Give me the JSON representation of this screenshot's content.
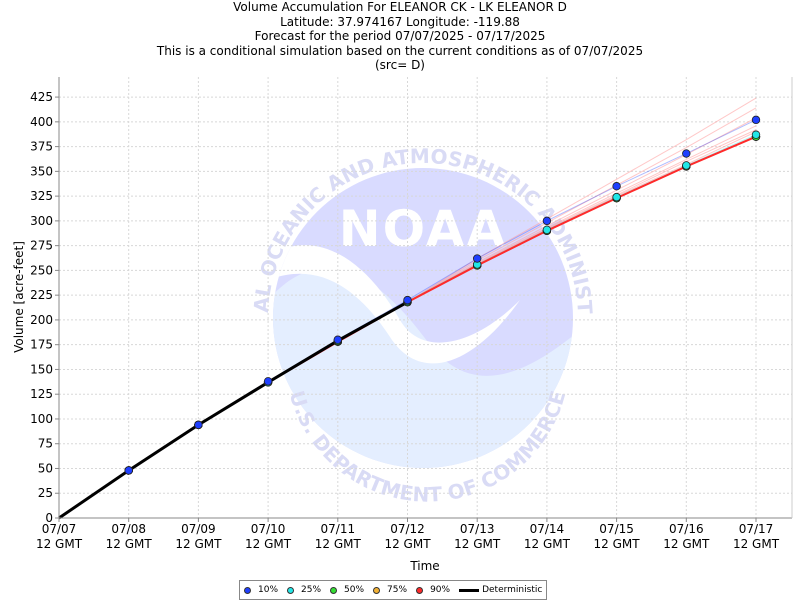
{
  "titles": {
    "line1": "Volume Accumulation For ELEANOR CK - LK ELEANOR D",
    "line2": "Latitude: 37.974167 Longitude: -119.88",
    "line3": "Forecast for the period 07/07/2025 - 07/17/2025",
    "line4": "This is a conditional simulation based on the current conditions as of 07/07/2025",
    "line5": "(src= D)"
  },
  "watermark": {
    "logo_text": "NOAA",
    "arc_top": "NATIONAL OCEANIC AND ATMOSPHERIC ADMINISTRATION",
    "arc_bottom": "U.S. DEPARTMENT OF COMMERCE"
  },
  "legend": [
    {
      "label": "10%",
      "color": "#1f3fff"
    },
    {
      "label": "25%",
      "color": "#22e6e6"
    },
    {
      "label": "50%",
      "color": "#33dd33"
    },
    {
      "label": "75%",
      "color": "#f2b134"
    },
    {
      "label": "90%",
      "color": "#ff2a2a"
    },
    {
      "label": "Deterministic",
      "color": "#000000"
    }
  ],
  "chart_data": {
    "type": "line",
    "xlabel": "Time",
    "ylabel": "Volume [acre-feet]",
    "ylim": [
      0,
      440
    ],
    "yticks": [
      0,
      25,
      50,
      75,
      100,
      125,
      150,
      175,
      200,
      225,
      250,
      275,
      300,
      325,
      350,
      375,
      400,
      425
    ],
    "categories": [
      "07/07",
      "07/08",
      "07/09",
      "07/10",
      "07/11",
      "07/12",
      "07/13",
      "07/14",
      "07/15",
      "07/16",
      "07/17"
    ],
    "x_tick_sublabel": "12 GMT",
    "grid": true,
    "legend_position": "bottom",
    "deterministic": {
      "name": "Deterministic",
      "values": [
        0,
        48,
        94,
        137,
        179,
        218
      ]
    },
    "series": [
      {
        "name": "10%",
        "color": "#1f3fff",
        "values": [
          null,
          48,
          94,
          138,
          180,
          220,
          262,
          300,
          335,
          368,
          402
        ]
      },
      {
        "name": "25%",
        "color": "#22e6e6",
        "values": [
          null,
          48,
          94,
          137,
          179,
          219,
          256,
          291,
          324,
          356,
          387
        ]
      },
      {
        "name": "50%",
        "color": "#33dd33",
        "values": [
          null,
          48,
          94,
          137,
          178,
          218,
          255,
          290,
          323,
          355,
          385
        ]
      },
      {
        "name": "75%",
        "color": "#f2b134",
        "values": [
          null,
          48,
          94,
          137,
          178,
          218,
          255,
          290,
          323,
          355,
          385
        ]
      },
      {
        "name": "90%",
        "color": "#ff2a2a",
        "values": [
          null,
          48,
          94,
          137,
          178,
          218,
          255,
          290,
          323,
          355,
          385
        ]
      }
    ],
    "ensemble_traces": [
      [
        218,
        262,
        302,
        342,
        382,
        424
      ],
      [
        218,
        260,
        298,
        336,
        374,
        414
      ],
      [
        218,
        258,
        295,
        331,
        367,
        404
      ],
      [
        218,
        257,
        293,
        328,
        362,
        396
      ],
      [
        218,
        256,
        292,
        326,
        360,
        392
      ],
      [
        218,
        256,
        291,
        325,
        357,
        390
      ],
      [
        218,
        255,
        290,
        323,
        355,
        386
      ]
    ]
  }
}
